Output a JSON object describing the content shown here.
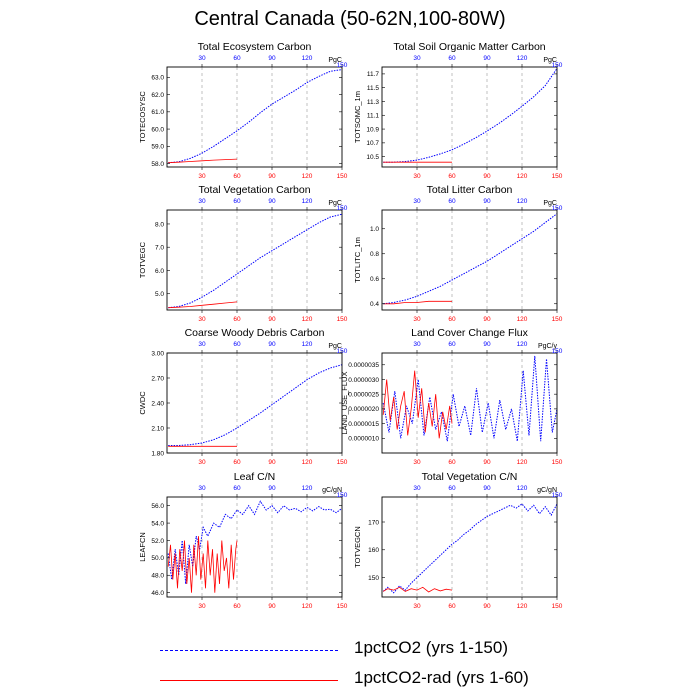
{
  "title": "Central Canada (50-62N,100-80W)",
  "colors": {
    "series1": "#0000ff",
    "series2": "#ff0000"
  },
  "legend": [
    {
      "label": "1pctCO2 (yrs 1-150)",
      "color": "#0000ff",
      "style": "dashed"
    },
    {
      "label": "1pctCO2-rad (yrs 1-60)",
      "color": "#ff0000",
      "style": "solid"
    }
  ],
  "chart_data": [
    {
      "type": "line",
      "title": "Total Ecosystem Carbon",
      "ylabel": "TOTECOSYSC",
      "units": "PgC",
      "xlim": [
        0,
        150
      ],
      "xticks": [
        30,
        60,
        90,
        120,
        150
      ],
      "ylim": [
        57.8,
        63.6
      ],
      "yticks": [
        "58.0",
        "59.0",
        "60.0",
        "61.0",
        "62.0",
        "63.0"
      ],
      "vgrid": [
        30,
        60,
        90,
        120
      ],
      "series": [
        {
          "name": "1pctCO2 (yrs 1-150)",
          "color": "#0000ff",
          "x": [
            1,
            10,
            20,
            30,
            40,
            50,
            60,
            70,
            80,
            90,
            100,
            110,
            120,
            130,
            140,
            150
          ],
          "y": [
            58.05,
            58.1,
            58.3,
            58.6,
            59.0,
            59.45,
            59.9,
            60.4,
            60.95,
            61.45,
            61.85,
            62.25,
            62.7,
            63.05,
            63.35,
            63.45
          ]
        },
        {
          "name": "1pctCO2-rad (yrs 1-60)",
          "color": "#ff0000",
          "x": [
            1,
            10,
            20,
            30,
            40,
            50,
            60
          ],
          "y": [
            58.05,
            58.08,
            58.12,
            58.16,
            58.2,
            58.23,
            58.26
          ]
        }
      ]
    },
    {
      "type": "line",
      "title": "Total Soil Organic Matter Carbon",
      "ylabel": "TOTSOMC_1m",
      "units": "PgC",
      "xlim": [
        0,
        150
      ],
      "xticks": [
        30,
        60,
        90,
        120,
        150
      ],
      "ylim": [
        10.35,
        11.8
      ],
      "yticks": [
        "10.5",
        "10.7",
        "10.9",
        "11.1",
        "11.3",
        "11.5",
        "11.7"
      ],
      "vgrid": [
        30,
        60,
        90,
        120
      ],
      "series": [
        {
          "name": "1pctCO2 (yrs 1-150)",
          "color": "#0000ff",
          "x": [
            1,
            10,
            20,
            30,
            40,
            50,
            60,
            70,
            80,
            90,
            100,
            110,
            120,
            130,
            140,
            150
          ],
          "y": [
            10.42,
            10.42,
            10.43,
            10.45,
            10.49,
            10.54,
            10.6,
            10.68,
            10.77,
            10.87,
            10.98,
            11.1,
            11.23,
            11.37,
            11.53,
            11.78
          ]
        },
        {
          "name": "1pctCO2-rad (yrs 1-60)",
          "color": "#ff0000",
          "x": [
            1,
            10,
            20,
            30,
            40,
            50,
            60
          ],
          "y": [
            10.42,
            10.42,
            10.42,
            10.42,
            10.42,
            10.42,
            10.42
          ]
        }
      ]
    },
    {
      "type": "line",
      "title": "Total Vegetation Carbon",
      "ylabel": "TOTVEGC",
      "units": "PgC",
      "xlim": [
        0,
        150
      ],
      "xticks": [
        30,
        60,
        90,
        120,
        150
      ],
      "ylim": [
        4.3,
        8.6
      ],
      "yticks": [
        "5.0",
        "6.0",
        "7.0",
        "8.0"
      ],
      "vgrid": [
        30,
        60,
        90,
        120
      ],
      "series": [
        {
          "name": "1pctCO2 (yrs 1-150)",
          "color": "#0000ff",
          "x": [
            1,
            10,
            20,
            30,
            40,
            50,
            60,
            70,
            80,
            90,
            100,
            110,
            120,
            130,
            140,
            150
          ],
          "y": [
            4.4,
            4.45,
            4.6,
            4.85,
            5.15,
            5.5,
            5.85,
            6.2,
            6.55,
            6.85,
            7.15,
            7.45,
            7.75,
            8.05,
            8.3,
            8.42
          ]
        },
        {
          "name": "1pctCO2-rad (yrs 1-60)",
          "color": "#ff0000",
          "x": [
            1,
            10,
            20,
            30,
            40,
            50,
            60
          ],
          "y": [
            4.4,
            4.42,
            4.45,
            4.5,
            4.55,
            4.6,
            4.65
          ]
        }
      ]
    },
    {
      "type": "line",
      "title": "Total Litter Carbon",
      "ylabel": "TOTLITC_1m",
      "units": "PgC",
      "xlim": [
        0,
        150
      ],
      "xticks": [
        30,
        60,
        90,
        120,
        150
      ],
      "ylim": [
        0.35,
        1.15
      ],
      "yticks": [
        "0.4",
        "0.6",
        "0.8",
        "1.0"
      ],
      "vgrid": [
        30,
        60,
        90,
        120
      ],
      "series": [
        {
          "name": "1pctCO2 (yrs 1-150)",
          "color": "#0000ff",
          "x": [
            1,
            10,
            20,
            30,
            40,
            50,
            60,
            70,
            80,
            90,
            100,
            110,
            120,
            130,
            140,
            150
          ],
          "y": [
            0.4,
            0.41,
            0.43,
            0.46,
            0.5,
            0.54,
            0.59,
            0.64,
            0.69,
            0.74,
            0.8,
            0.86,
            0.92,
            0.98,
            1.05,
            1.12
          ]
        },
        {
          "name": "1pctCO2-rad (yrs 1-60)",
          "color": "#ff0000",
          "x": [
            1,
            10,
            20,
            30,
            40,
            50,
            60
          ],
          "y": [
            0.4,
            0.4,
            0.41,
            0.41,
            0.42,
            0.42,
            0.42
          ]
        }
      ]
    },
    {
      "type": "line",
      "title": "Coarse Woody Debris Carbon",
      "ylabel": "CWDC",
      "units": "PgC",
      "xlim": [
        0,
        150
      ],
      "xticks": [
        30,
        60,
        90,
        120,
        150
      ],
      "ylim": [
        1.8,
        3.0
      ],
      "yticks": [
        "1.80",
        "2.10",
        "2.40",
        "2.70",
        "3.00"
      ],
      "vgrid": [
        30,
        60,
        90,
        120
      ],
      "series": [
        {
          "name": "1pctCO2 (yrs 1-150)",
          "color": "#0000ff",
          "x": [
            1,
            10,
            20,
            30,
            40,
            50,
            60,
            70,
            80,
            90,
            100,
            110,
            120,
            130,
            140,
            150
          ],
          "y": [
            1.89,
            1.89,
            1.9,
            1.92,
            1.96,
            2.02,
            2.1,
            2.19,
            2.28,
            2.38,
            2.48,
            2.58,
            2.68,
            2.76,
            2.82,
            2.86
          ]
        },
        {
          "name": "1pctCO2-rad (yrs 1-60)",
          "color": "#ff0000",
          "x": [
            1,
            10,
            20,
            30,
            40,
            50,
            60
          ],
          "y": [
            1.88,
            1.88,
            1.88,
            1.88,
            1.88,
            1.88,
            1.88
          ]
        }
      ]
    },
    {
      "type": "line",
      "title": "Land Cover Change Flux",
      "ylabel": "LAND_USE_FLUX",
      "units": "PgC/y",
      "xlim": [
        0,
        150
      ],
      "xticks": [
        30,
        60,
        90,
        120,
        150
      ],
      "ylim": [
        5e-07,
        3.9e-06
      ],
      "yticks": [
        "0.0000010",
        "0.0000015",
        "0.0000020",
        "0.0000025",
        "0.0000030",
        "0.0000035"
      ],
      "vgrid": [
        30,
        60,
        90,
        120
      ],
      "series": [
        {
          "name": "1pctCO2 (yrs 1-150)",
          "color": "#0000ff",
          "x": [
            1,
            6,
            11,
            16,
            21,
            26,
            31,
            36,
            41,
            46,
            51,
            56,
            61,
            66,
            71,
            76,
            81,
            86,
            91,
            96,
            101,
            106,
            111,
            116,
            121,
            126,
            131,
            136,
            141,
            146,
            150
          ],
          "y": [
            2.2e-06,
            1.2e-06,
            2.6e-06,
            1e-06,
            2.1e-06,
            1.5e-06,
            3e-06,
            1.1e-06,
            2.4e-06,
            1.3e-06,
            1.9e-06,
            9e-07,
            2.5e-06,
            1.4e-06,
            2.1e-06,
            1.1e-06,
            2.7e-06,
            1.2e-06,
            2.2e-06,
            1e-06,
            2.3e-06,
            1.3e-06,
            2e-06,
            9e-07,
            3.3e-06,
            1.1e-06,
            3.8e-06,
            9e-07,
            3.7e-06,
            1.2e-06,
            2e-06
          ]
        },
        {
          "name": "1pctCO2-rad (yrs 1-60)",
          "color": "#ff0000",
          "x": [
            1,
            4,
            7,
            10,
            13,
            16,
            19,
            22,
            25,
            28,
            31,
            34,
            37,
            40,
            43,
            46,
            49,
            52,
            55,
            58,
            60
          ],
          "y": [
            1.8e-06,
            3e-06,
            1.6e-06,
            2.4e-06,
            1.3e-06,
            2.1e-06,
            2.6e-06,
            1.1e-06,
            2e-06,
            3.3e-06,
            1.7e-06,
            2.7e-06,
            1.2e-06,
            2.2e-06,
            1.4e-06,
            2.5e-06,
            1e-06,
            1.9e-06,
            1.3e-06,
            2.1e-06,
            1.5e-06
          ]
        }
      ]
    },
    {
      "type": "line",
      "title": "Leaf C/N",
      "ylabel": "LEAFCN",
      "units": "gC/gN",
      "xlim": [
        0,
        150
      ],
      "xticks": [
        30,
        60,
        90,
        120,
        150
      ],
      "ylim": [
        45.5,
        57.0
      ],
      "yticks": [
        "46.0",
        "48.0",
        "50.0",
        "52.0",
        "54.0",
        "56.0"
      ],
      "vgrid": [
        30,
        60,
        90,
        120
      ],
      "series": [
        {
          "name": "1pctCO2 (yrs 1-150)",
          "color": "#0000ff",
          "x": [
            1,
            4,
            7,
            10,
            13,
            16,
            19,
            22,
            25,
            28,
            31,
            35,
            40,
            45,
            50,
            55,
            60,
            65,
            70,
            75,
            80,
            85,
            90,
            95,
            100,
            105,
            110,
            115,
            120,
            125,
            130,
            135,
            140,
            145,
            150
          ],
          "y": [
            50.5,
            47.5,
            51.0,
            48.0,
            52.0,
            47.0,
            51.5,
            49.0,
            52.5,
            51.0,
            53.5,
            52.5,
            54.0,
            53.5,
            55.0,
            54.5,
            55.5,
            55.0,
            56.0,
            55.0,
            56.5,
            55.5,
            56.0,
            55.2,
            56.0,
            55.5,
            55.7,
            55.3,
            55.8,
            55.4,
            55.9,
            55.5,
            55.6,
            55.2,
            55.7
          ]
        },
        {
          "name": "1pctCO2-rad (yrs 1-60)",
          "color": "#ff0000",
          "x": [
            1,
            3,
            5,
            7,
            9,
            11,
            13,
            15,
            17,
            19,
            21,
            23,
            25,
            27,
            29,
            31,
            33,
            35,
            37,
            39,
            41,
            43,
            45,
            47,
            49,
            51,
            53,
            55,
            57,
            59,
            60
          ],
          "y": [
            49.0,
            51.5,
            47.5,
            50.5,
            46.5,
            51.0,
            48.5,
            52.0,
            47.0,
            50.0,
            46.0,
            51.5,
            48.0,
            52.5,
            47.5,
            50.5,
            46.5,
            52.0,
            48.0,
            51.0,
            46.0,
            50.5,
            47.0,
            52.0,
            48.5,
            50.0,
            46.5,
            51.5,
            47.5,
            51.0,
            52.0
          ]
        }
      ]
    },
    {
      "type": "line",
      "title": "Total Vegetation C/N",
      "ylabel": "TOTVEGCN",
      "units": "gC/gN",
      "xlim": [
        0,
        150
      ],
      "xticks": [
        30,
        60,
        90,
        120,
        150
      ],
      "ylim": [
        143,
        179
      ],
      "yticks": [
        "150",
        "160",
        "170"
      ],
      "vgrid": [
        30,
        60,
        90,
        120
      ],
      "series": [
        {
          "name": "1pctCO2 (yrs 1-150)",
          "color": "#0000ff",
          "x": [
            1,
            5,
            10,
            15,
            20,
            25,
            30,
            35,
            40,
            45,
            50,
            55,
            60,
            65,
            70,
            75,
            80,
            85,
            90,
            95,
            100,
            105,
            110,
            115,
            120,
            125,
            130,
            135,
            140,
            145,
            150
          ],
          "y": [
            145,
            146.5,
            144.5,
            147,
            145.5,
            148,
            150,
            152,
            154,
            156,
            158,
            160,
            162,
            163.5,
            165.5,
            167,
            169,
            170.5,
            172,
            173,
            174,
            175,
            176,
            175,
            176.5,
            174,
            176,
            173,
            175.5,
            172.5,
            176.5
          ]
        },
        {
          "name": "1pctCO2-rad (yrs 1-60)",
          "color": "#ff0000",
          "x": [
            1,
            5,
            10,
            15,
            20,
            25,
            30,
            35,
            40,
            45,
            50,
            55,
            60
          ],
          "y": [
            145,
            146,
            145.5,
            146.5,
            145,
            146,
            145.5,
            146.5,
            144.8,
            146,
            145.2,
            145.8,
            145.5
          ]
        }
      ]
    }
  ]
}
